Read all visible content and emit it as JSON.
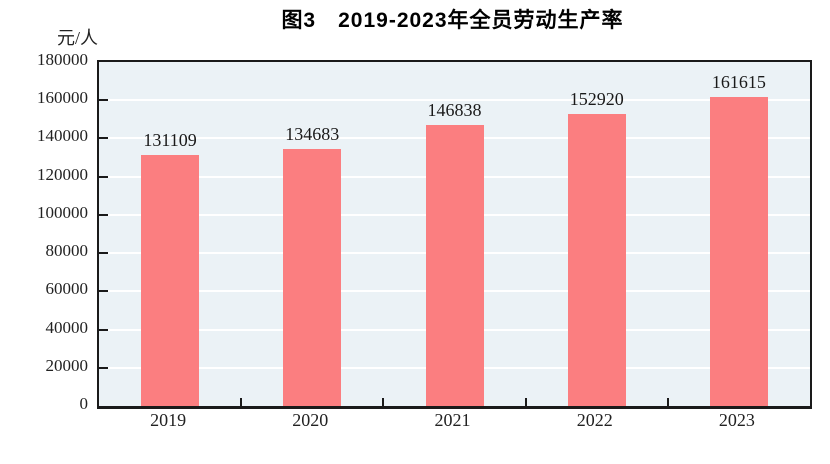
{
  "header": {
    "title": "图3　2019-2023年全员劳动生产率"
  },
  "chart_data": {
    "type": "bar",
    "title": "图3　2019-2023年全员劳动生产率",
    "unit_label": "元/人",
    "xlabel": "",
    "ylabel": "元/人",
    "categories": [
      "2019",
      "2020",
      "2021",
      "2022",
      "2023"
    ],
    "values": [
      131109,
      134683,
      146838,
      152920,
      161615
    ],
    "value_labels": [
      "131109",
      "134683",
      "146838",
      "152920",
      "161615"
    ],
    "ylim": [
      0,
      180000
    ],
    "yticks": [
      0,
      20000,
      40000,
      60000,
      80000,
      100000,
      120000,
      140000,
      160000,
      180000
    ],
    "grid": true,
    "legend_position": "none",
    "colors": {
      "bar": "#fb7e80",
      "plot_background": "#ebf2f6",
      "gridline": "#ffffff",
      "axis": "#1a1a1a",
      "text": "#222222"
    }
  }
}
